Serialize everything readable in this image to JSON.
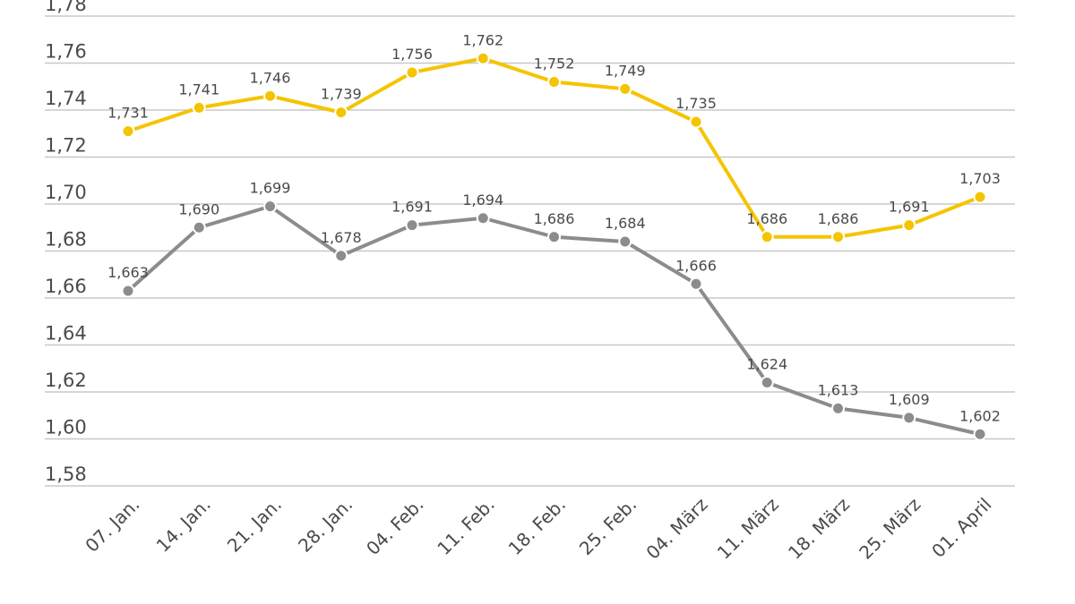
{
  "chart_data": {
    "type": "line",
    "title": "",
    "xlabel": "",
    "ylabel": "",
    "categories": [
      "07. Jan.",
      "14. Jan.",
      "21. Jan.",
      "28. Jan.",
      "04. Feb.",
      "11. Feb.",
      "18. Feb.",
      "25. Feb.",
      "04. März",
      "11. März",
      "18. März",
      "25. März",
      "01. April"
    ],
    "ylim": [
      1.58,
      1.78
    ],
    "yticks": [
      1.58,
      1.6,
      1.62,
      1.64,
      1.66,
      1.68,
      1.7,
      1.72,
      1.74,
      1.76,
      1.78
    ],
    "ytick_labels": [
      "1,58",
      "1,60",
      "1,62",
      "1,64",
      "1,66",
      "1,68",
      "1,70",
      "1,72",
      "1,74",
      "1,76",
      "1,78"
    ],
    "grid": true,
    "series": [
      {
        "name": "yellow-series",
        "color": "#f5c400",
        "values": [
          1.731,
          1.741,
          1.746,
          1.739,
          1.756,
          1.762,
          1.752,
          1.749,
          1.735,
          1.686,
          1.686,
          1.691,
          1.703
        ],
        "labels": [
          "1,731",
          "1,741",
          "1,746",
          "1,739",
          "1,756",
          "1,762",
          "1,752",
          "1,749",
          "1,735",
          "1,686",
          "1,686",
          "1,691",
          "1,703"
        ]
      },
      {
        "name": "gray-series",
        "color": "#8c8c8c",
        "values": [
          1.663,
          1.69,
          1.699,
          1.678,
          1.691,
          1.694,
          1.686,
          1.684,
          1.666,
          1.624,
          1.613,
          1.609,
          1.602
        ],
        "labels": [
          "1,663",
          "1,690",
          "1,699",
          "1,678",
          "1,691",
          "1,694",
          "1,686",
          "1,684",
          "1,666",
          "1,624",
          "1,613",
          "1,609",
          "1,602"
        ]
      }
    ]
  }
}
